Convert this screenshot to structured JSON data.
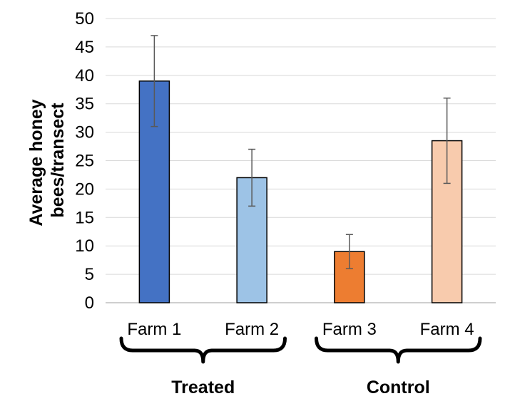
{
  "chart_data": {
    "type": "bar",
    "ylabel_lines": [
      "Average honey",
      "bees/transect"
    ],
    "categories": [
      "Farm 1",
      "Farm 2",
      "Farm 3",
      "Farm 4"
    ],
    "values": [
      39,
      22,
      9,
      28.5
    ],
    "error": [
      {
        "low": 31,
        "high": 47
      },
      {
        "low": 17,
        "high": 27
      },
      {
        "low": 6,
        "high": 12
      },
      {
        "low": 21,
        "high": 36
      }
    ],
    "colors": [
      "#4472c4",
      "#9dc3e6",
      "#ed7d31",
      "#f8cbad"
    ],
    "ylim": [
      0,
      50
    ],
    "yticks": [
      0,
      5,
      10,
      15,
      20,
      25,
      30,
      35,
      40,
      45,
      50
    ],
    "grid": true,
    "groups": [
      {
        "label": "Treated",
        "categories": [
          "Farm 1",
          "Farm 2"
        ]
      },
      {
        "label": "Control",
        "categories": [
          "Farm 3",
          "Farm 4"
        ]
      }
    ]
  }
}
